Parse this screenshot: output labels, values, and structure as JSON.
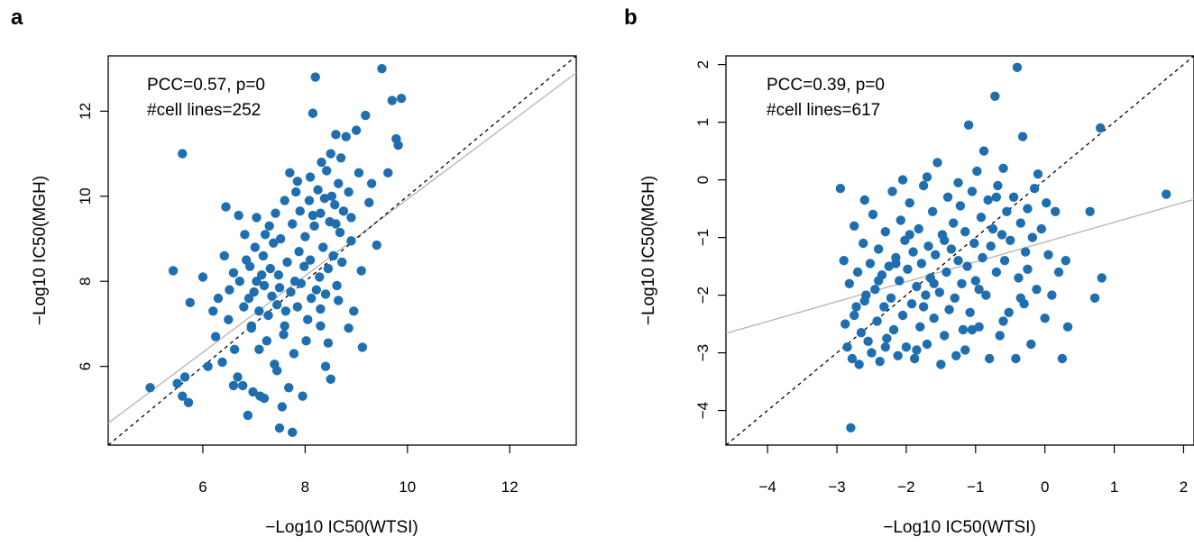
{
  "chart_data": [
    {
      "type": "scatter",
      "panel_label": "a",
      "title": "",
      "xlabel": "−Log10 IC50(WTSI)",
      "ylabel": "−Log10 IC50(MGH)",
      "xlim": [
        4.15,
        13.3
      ],
      "ylim": [
        4.15,
        13.3
      ],
      "xticks": [
        6,
        8,
        10,
        12
      ],
      "yticks": [
        6,
        8,
        10,
        12
      ],
      "annotations": [
        "PCC=0.57, p=0",
        "#cell lines=252"
      ],
      "grid": false,
      "point_color": "#1f6fb0",
      "identity_line_color": "#000000",
      "fit_line_color": "#b4b4b4",
      "fit_line": {
        "slope": 0.9,
        "intercept": 0.93
      },
      "identity_line": {
        "slope": 1,
        "intercept": 0
      },
      "points": [
        [
          4.97,
          5.5
        ],
        [
          5.42,
          8.25
        ],
        [
          5.5,
          5.6
        ],
        [
          5.6,
          11.0
        ],
        [
          5.6,
          5.3
        ],
        [
          5.65,
          5.75
        ],
        [
          5.72,
          5.15
        ],
        [
          5.75,
          7.5
        ],
        [
          6.0,
          8.1
        ],
        [
          6.1,
          6.0
        ],
        [
          6.2,
          7.3
        ],
        [
          6.25,
          6.7
        ],
        [
          6.3,
          7.6
        ],
        [
          6.38,
          6.1
        ],
        [
          6.42,
          8.6
        ],
        [
          6.45,
          9.75
        ],
        [
          6.5,
          7.1
        ],
        [
          6.52,
          7.8
        ],
        [
          6.6,
          5.55
        ],
        [
          6.6,
          8.2
        ],
        [
          6.62,
          6.4
        ],
        [
          6.68,
          5.75
        ],
        [
          6.7,
          9.55
        ],
        [
          6.72,
          8.0
        ],
        [
          6.78,
          5.55
        ],
        [
          6.8,
          7.4
        ],
        [
          6.82,
          9.1
        ],
        [
          6.85,
          8.5
        ],
        [
          6.88,
          4.85
        ],
        [
          6.9,
          7.6
        ],
        [
          6.92,
          8.35
        ],
        [
          6.95,
          6.9
        ],
        [
          6.98,
          5.4
        ],
        [
          7.0,
          7.75
        ],
        [
          7.02,
          8.8
        ],
        [
          7.05,
          8.0
        ],
        [
          7.05,
          9.5
        ],
        [
          7.1,
          7.3
        ],
        [
          7.1,
          6.4
        ],
        [
          7.12,
          5.3
        ],
        [
          7.15,
          8.15
        ],
        [
          7.18,
          8.6
        ],
        [
          7.2,
          7.9
        ],
        [
          7.22,
          9.1
        ],
        [
          7.25,
          6.6
        ],
        [
          7.28,
          7.2
        ],
        [
          7.3,
          9.3
        ],
        [
          7.32,
          8.3
        ],
        [
          7.35,
          7.65
        ],
        [
          7.38,
          8.9
        ],
        [
          7.4,
          6.05
        ],
        [
          7.42,
          9.6
        ],
        [
          7.45,
          7.45
        ],
        [
          7.48,
          8.15
        ],
        [
          7.5,
          7.85
        ],
        [
          7.5,
          4.55
        ],
        [
          7.52,
          9.0
        ],
        [
          7.55,
          5.05
        ],
        [
          7.58,
          6.75
        ],
        [
          7.6,
          9.9
        ],
        [
          7.62,
          7.3
        ],
        [
          7.65,
          8.45
        ],
        [
          7.68,
          5.5
        ],
        [
          7.7,
          10.55
        ],
        [
          7.72,
          7.75
        ],
        [
          7.75,
          9.35
        ],
        [
          7.75,
          4.45
        ],
        [
          7.78,
          6.3
        ],
        [
          7.8,
          8.0
        ],
        [
          7.82,
          10.1
        ],
        [
          7.85,
          7.4
        ],
        [
          7.88,
          8.7
        ],
        [
          7.9,
          9.65
        ],
        [
          7.92,
          7.95
        ],
        [
          7.95,
          5.3
        ],
        [
          7.98,
          8.35
        ],
        [
          8.0,
          9.05
        ],
        [
          8.02,
          6.6
        ],
        [
          8.05,
          7.1
        ],
        [
          8.08,
          9.9
        ],
        [
          8.1,
          8.5
        ],
        [
          8.1,
          10.45
        ],
        [
          8.12,
          7.6
        ],
        [
          8.15,
          11.95
        ],
        [
          8.18,
          9.3
        ],
        [
          8.2,
          12.8
        ],
        [
          8.22,
          7.8
        ],
        [
          8.25,
          10.15
        ],
        [
          8.28,
          8.1
        ],
        [
          8.3,
          9.6
        ],
        [
          8.3,
          7.35
        ],
        [
          8.32,
          10.8
        ],
        [
          8.35,
          8.8
        ],
        [
          8.38,
          9.95
        ],
        [
          8.4,
          7.7
        ],
        [
          8.42,
          10.6
        ],
        [
          8.45,
          8.3
        ],
        [
          8.48,
          9.4
        ],
        [
          8.5,
          11.0
        ],
        [
          8.52,
          10.0
        ],
        [
          8.55,
          8.6
        ],
        [
          8.58,
          9.8
        ],
        [
          8.6,
          11.45
        ],
        [
          8.62,
          7.9
        ],
        [
          8.65,
          10.3
        ],
        [
          8.68,
          9.15
        ],
        [
          8.7,
          10.9
        ],
        [
          8.72,
          8.45
        ],
        [
          8.75,
          9.65
        ],
        [
          8.8,
          11.4
        ],
        [
          8.85,
          10.1
        ],
        [
          8.9,
          9.5
        ],
        [
          8.95,
          7.3
        ],
        [
          9.0,
          11.55
        ],
        [
          9.05,
          10.55
        ],
        [
          9.1,
          8.25
        ],
        [
          9.12,
          6.45
        ],
        [
          9.18,
          11.9
        ],
        [
          9.25,
          9.85
        ],
        [
          9.3,
          10.3
        ],
        [
          9.4,
          8.85
        ],
        [
          9.5,
          13.0
        ],
        [
          9.62,
          10.55
        ],
        [
          9.7,
          12.25
        ],
        [
          9.78,
          11.35
        ],
        [
          9.82,
          11.2
        ],
        [
          9.88,
          12.3
        ],
        [
          8.4,
          6.0
        ],
        [
          8.5,
          5.7
        ],
        [
          8.45,
          6.55
        ],
        [
          8.3,
          6.95
        ],
        [
          7.6,
          6.95
        ],
        [
          7.45,
          5.9
        ],
        [
          8.65,
          7.55
        ],
        [
          8.85,
          6.9
        ],
        [
          7.2,
          5.25
        ],
        [
          6.95,
          6.95
        ],
        [
          7.85,
          10.35
        ],
        [
          8.15,
          9.55
        ],
        [
          8.6,
          9.35
        ],
        [
          8.9,
          8.95
        ]
      ]
    },
    {
      "type": "scatter",
      "panel_label": "b",
      "title": "",
      "xlabel": "−Log10 IC50(WTSI)",
      "ylabel": "−Log10 IC50(MGH)",
      "xlim": [
        -4.6,
        2.15
      ],
      "ylim": [
        -4.6,
        2.15
      ],
      "xticks": [
        -4,
        -3,
        -2,
        -1,
        0,
        1,
        2
      ],
      "yticks": [
        -4,
        -3,
        -2,
        -1,
        0,
        1,
        2
      ],
      "annotations": [
        "PCC=0.39, p=0",
        "#cell lines=617"
      ],
      "grid": false,
      "point_color": "#1f6fb0",
      "identity_line_color": "#000000",
      "fit_line_color": "#b4b4b4",
      "fit_line": {
        "slope": 0.344,
        "intercept": -1.08
      },
      "identity_line": {
        "slope": 1,
        "intercept": 0
      },
      "points": [
        [
          -2.95,
          -0.15
        ],
        [
          -2.9,
          -1.4
        ],
        [
          -2.88,
          -2.5
        ],
        [
          -2.85,
          -2.9
        ],
        [
          -2.82,
          -1.8
        ],
        [
          -2.8,
          -4.3
        ],
        [
          -2.78,
          -3.1
        ],
        [
          -2.75,
          -0.8
        ],
        [
          -2.72,
          -2.2
        ],
        [
          -2.7,
          -1.6
        ],
        [
          -2.68,
          -3.2
        ],
        [
          -2.65,
          -2.65
        ],
        [
          -2.62,
          -1.1
        ],
        [
          -2.6,
          -0.35
        ],
        [
          -2.58,
          -2.0
        ],
        [
          -2.55,
          -2.8
        ],
        [
          -2.52,
          -1.45
        ],
        [
          -2.5,
          -3.0
        ],
        [
          -2.48,
          -0.6
        ],
        [
          -2.45,
          -1.9
        ],
        [
          -2.42,
          -2.45
        ],
        [
          -2.4,
          -1.2
        ],
        [
          -2.38,
          -3.15
        ],
        [
          -2.35,
          -1.65
        ],
        [
          -2.32,
          -2.2
        ],
        [
          -2.3,
          -0.9
        ],
        [
          -2.28,
          -2.75
        ],
        [
          -2.25,
          -1.5
        ],
        [
          -2.22,
          -2.05
        ],
        [
          -2.2,
          -0.2
        ],
        [
          -2.18,
          -2.6
        ],
        [
          -2.15,
          -1.35
        ],
        [
          -2.12,
          -3.05
        ],
        [
          -2.1,
          -1.75
        ],
        [
          -2.08,
          -0.7
        ],
        [
          -2.05,
          -2.35
        ],
        [
          -2.02,
          -1.05
        ],
        [
          -2.0,
          -2.9
        ],
        [
          -1.98,
          -1.55
        ],
        [
          -1.95,
          -0.4
        ],
        [
          -1.92,
          -2.15
        ],
        [
          -1.9,
          -1.25
        ],
        [
          -1.88,
          -3.1
        ],
        [
          -1.85,
          -1.85
        ],
        [
          -1.82,
          -0.85
        ],
        [
          -1.8,
          -2.55
        ],
        [
          -1.78,
          -1.45
        ],
        [
          -1.75,
          -0.1
        ],
        [
          -1.72,
          -2.0
        ],
        [
          -1.7,
          -2.85
        ],
        [
          -1.68,
          -1.15
        ],
        [
          -1.65,
          -1.7
        ],
        [
          -1.62,
          -0.55
        ],
        [
          -1.6,
          -2.4
        ],
        [
          -1.58,
          -1.3
        ],
        [
          -1.55,
          0.3
        ],
        [
          -1.52,
          -1.95
        ],
        [
          -1.5,
          -3.2
        ],
        [
          -1.48,
          -0.95
        ],
        [
          -1.45,
          -2.7
        ],
        [
          -1.42,
          -1.6
        ],
        [
          -1.4,
          -0.3
        ],
        [
          -1.38,
          -2.25
        ],
        [
          -1.35,
          -1.2
        ],
        [
          -1.32,
          -0.75
        ],
        [
          -1.3,
          -2.05
        ],
        [
          -1.28,
          -3.05
        ],
        [
          -1.25,
          -1.4
        ],
        [
          -1.22,
          -0.45
        ],
        [
          -1.2,
          -1.8
        ],
        [
          -1.18,
          -2.6
        ],
        [
          -1.15,
          -0.9
        ],
        [
          -1.12,
          -1.5
        ],
        [
          -1.1,
          0.95
        ],
        [
          -1.08,
          -2.3
        ],
        [
          -1.05,
          -0.2
        ],
        [
          -1.02,
          -1.1
        ],
        [
          -1.0,
          -1.75
        ],
        [
          -0.98,
          0.15
        ],
        [
          -0.95,
          -2.55
        ],
        [
          -0.92,
          -0.65
        ],
        [
          -0.9,
          -1.35
        ],
        [
          -0.88,
          0.5
        ],
        [
          -0.85,
          -2.0
        ],
        [
          -0.82,
          -0.35
        ],
        [
          -0.8,
          -3.1
        ],
        [
          -0.78,
          -1.15
        ],
        [
          -0.75,
          -0.85
        ],
        [
          -0.72,
          1.45
        ],
        [
          -0.7,
          -1.6
        ],
        [
          -0.68,
          -0.1
        ],
        [
          -0.65,
          -2.7
        ],
        [
          -0.62,
          -0.95
        ],
        [
          -0.6,
          0.2
        ],
        [
          -0.58,
          -1.4
        ],
        [
          -0.55,
          -0.55
        ],
        [
          -0.52,
          -2.3
        ],
        [
          -0.5,
          -1.05
        ],
        [
          -0.45,
          -0.3
        ],
        [
          -0.42,
          -3.1
        ],
        [
          -0.4,
          1.95
        ],
        [
          -0.38,
          -1.7
        ],
        [
          -0.35,
          -0.75
        ],
        [
          -0.32,
          0.75
        ],
        [
          -0.3,
          -2.15
        ],
        [
          -0.28,
          -1.25
        ],
        [
          -0.25,
          -0.5
        ],
        [
          -0.2,
          -2.85
        ],
        [
          -0.18,
          -1.0
        ],
        [
          -0.15,
          -0.15
        ],
        [
          -0.12,
          -1.9
        ],
        [
          -0.1,
          0.1
        ],
        [
          -0.05,
          -0.85
        ],
        [
          0.0,
          -2.4
        ],
        [
          0.02,
          -0.4
        ],
        [
          0.05,
          -1.3
        ],
        [
          0.1,
          -2.0
        ],
        [
          0.15,
          -0.55
        ],
        [
          0.2,
          -1.6
        ],
        [
          0.25,
          -3.1
        ],
        [
          0.3,
          -1.4
        ],
        [
          0.33,
          -2.55
        ],
        [
          0.65,
          -0.55
        ],
        [
          0.72,
          -2.05
        ],
        [
          0.8,
          0.9
        ],
        [
          0.82,
          -1.7
        ],
        [
          1.75,
          -0.25
        ],
        [
          -1.7,
          0.05
        ],
        [
          -1.95,
          -0.95
        ],
        [
          -2.6,
          -2.1
        ],
        [
          -2.3,
          -2.9
        ],
        [
          -1.15,
          -2.95
        ],
        [
          -0.25,
          -1.55
        ],
        [
          -0.6,
          -2.45
        ],
        [
          -2.05,
          0.0
        ],
        [
          -1.45,
          -1.05
        ],
        [
          -0.95,
          -1.9
        ],
        [
          -1.75,
          -2.2
        ],
        [
          -2.4,
          -1.75
        ],
        [
          -1.25,
          -0.05
        ],
        [
          -0.7,
          -0.3
        ],
        [
          -1.6,
          -1.8
        ],
        [
          -2.15,
          -1.45
        ],
        [
          -1.05,
          -2.6
        ],
        [
          -0.35,
          -2.05
        ],
        [
          -1.85,
          -2.95
        ],
        [
          -2.75,
          -2.35
        ]
      ]
    }
  ]
}
